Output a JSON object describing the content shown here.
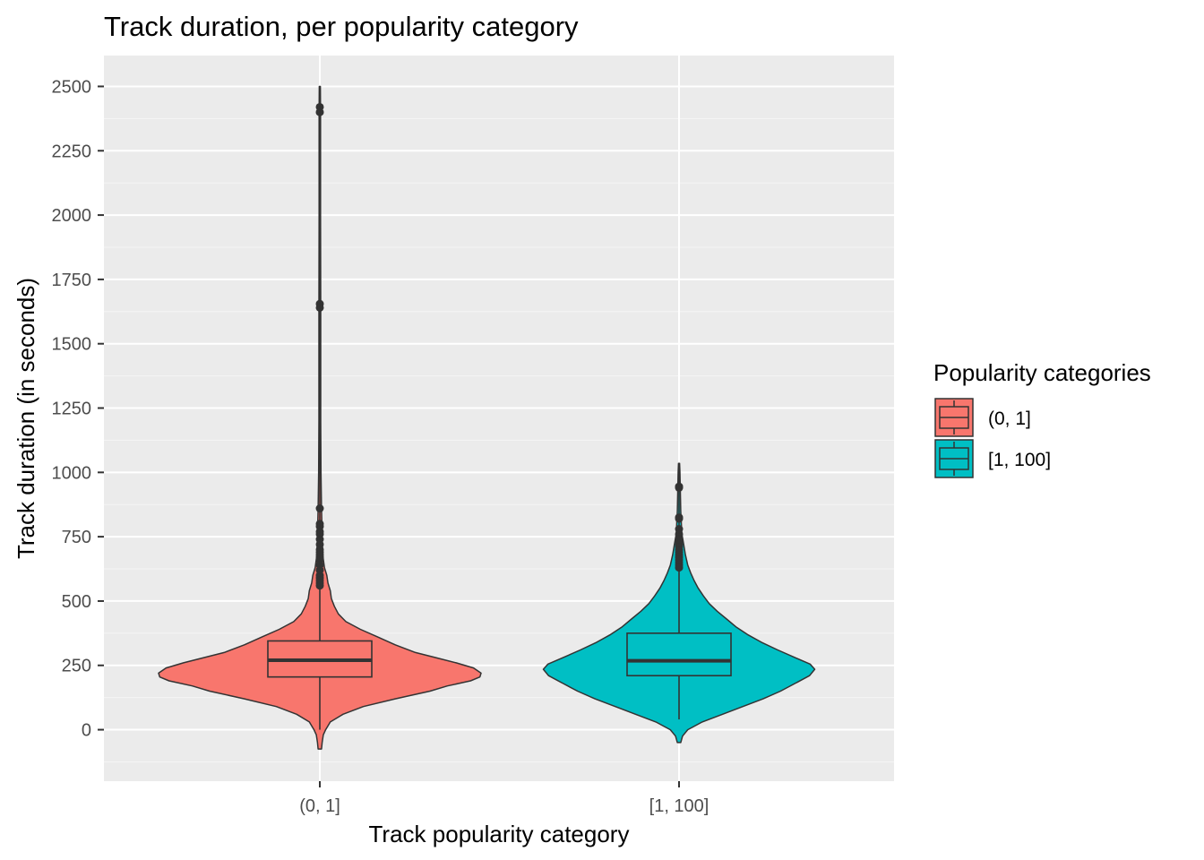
{
  "chart_data": {
    "type": "violin",
    "title": "Track duration, per popularity category",
    "xlabel": "Track popularity category",
    "ylabel": "Track duration (in seconds)",
    "ylim": [
      -200,
      2620
    ],
    "yticks": [
      0,
      250,
      500,
      750,
      1000,
      1250,
      1500,
      1750,
      2000,
      2250,
      2500
    ],
    "categories": [
      "(0, 1]",
      "[1, 100]"
    ],
    "grid": true,
    "legend": {
      "title": "Popularity categories",
      "position": "right"
    },
    "series": [
      {
        "name": "(0, 1]",
        "color": "#F8766D",
        "box": {
          "whisker_low": 0,
          "q1": 205,
          "median": 270,
          "q3": 345,
          "whisker_high": 630
        },
        "outliers": [
          2420,
          2400,
          1655,
          1640,
          860,
          800,
          790,
          770,
          760,
          740,
          720,
          700,
          690,
          680,
          670,
          660,
          640,
          620,
          600,
          590,
          580,
          570,
          560
        ],
        "violin_range": [
          -75,
          2500
        ],
        "density": [
          [
            -75,
            3
          ],
          [
            -50,
            4
          ],
          [
            -20,
            6
          ],
          [
            0,
            10
          ],
          [
            30,
            18
          ],
          [
            60,
            40
          ],
          [
            90,
            75
          ],
          [
            120,
            130
          ],
          [
            150,
            190
          ],
          [
            170,
            220
          ],
          [
            190,
            260
          ],
          [
            205,
            276
          ],
          [
            220,
            278
          ],
          [
            240,
            265
          ],
          [
            260,
            235
          ],
          [
            280,
            200
          ],
          [
            300,
            165
          ],
          [
            330,
            130
          ],
          [
            360,
            100
          ],
          [
            390,
            70
          ],
          [
            420,
            45
          ],
          [
            450,
            32
          ],
          [
            480,
            25
          ],
          [
            510,
            20
          ],
          [
            540,
            18
          ],
          [
            570,
            14
          ],
          [
            600,
            12
          ],
          [
            630,
            8
          ],
          [
            680,
            5
          ],
          [
            760,
            4
          ],
          [
            860,
            3
          ],
          [
            1000,
            2
          ],
          [
            1200,
            1.5
          ],
          [
            1650,
            1.5
          ],
          [
            2000,
            1.2
          ],
          [
            2400,
            1.2
          ],
          [
            2500,
            1
          ]
        ]
      },
      {
        "name": "[1, 100]",
        "color": "#00BFC4",
        "box": {
          "whisker_low": 40,
          "q1": 210,
          "median": 268,
          "q3": 375,
          "whisker high": 760
        },
        "outliers": [
          945,
          940,
          825,
          820,
          780,
          760,
          740,
          730,
          720,
          710,
          700,
          690,
          680,
          670,
          660,
          650,
          640,
          630
        ],
        "violin_range": [
          -50,
          1035
        ],
        "density": [
          [
            -50,
            3
          ],
          [
            -25,
            6
          ],
          [
            0,
            15
          ],
          [
            30,
            40
          ],
          [
            60,
            75
          ],
          [
            90,
            110
          ],
          [
            120,
            145
          ],
          [
            150,
            175
          ],
          [
            180,
            200
          ],
          [
            210,
            225
          ],
          [
            235,
            234
          ],
          [
            255,
            226
          ],
          [
            280,
            200
          ],
          [
            310,
            170
          ],
          [
            340,
            142
          ],
          [
            370,
            118
          ],
          [
            400,
            98
          ],
          [
            430,
            82
          ],
          [
            460,
            66
          ],
          [
            490,
            52
          ],
          [
            520,
            42
          ],
          [
            550,
            33
          ],
          [
            580,
            26
          ],
          [
            610,
            20
          ],
          [
            640,
            15
          ],
          [
            680,
            11
          ],
          [
            720,
            8
          ],
          [
            760,
            5
          ],
          [
            800,
            4
          ],
          [
            850,
            3
          ],
          [
            900,
            2.5
          ],
          [
            950,
            2
          ],
          [
            1000,
            1.5
          ],
          [
            1035,
            1
          ]
        ]
      }
    ]
  }
}
